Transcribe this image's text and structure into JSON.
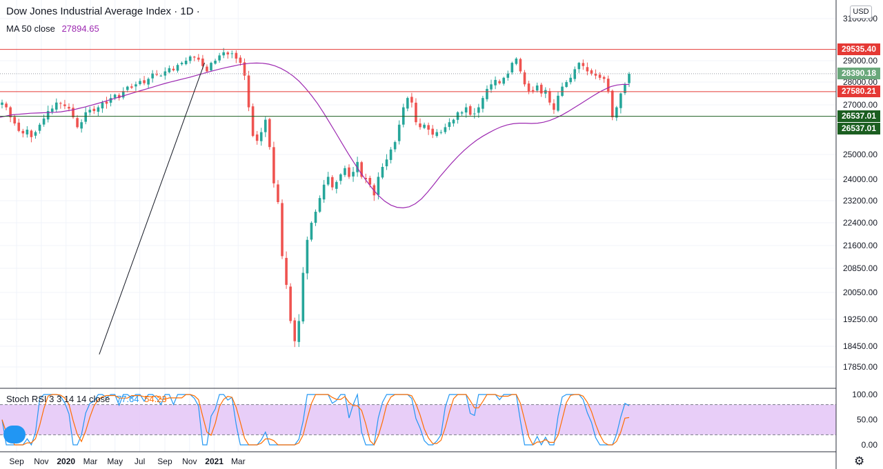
{
  "header": {
    "title": "Dow Jones Industrial Average Index · 1D ·",
    "ma_label": "MA 50 close",
    "ma_value": "27894.65",
    "currency": "USD"
  },
  "stoch": {
    "label": "Stoch RSI 3 3 14 14 close",
    "k_value": "77.64",
    "d_value": "54.23",
    "k_color": "#2196f3",
    "d_color": "#ff6d00",
    "band_upper": 80,
    "band_lower": 20,
    "ticks": [
      "100.00",
      "50.00",
      "0.00"
    ]
  },
  "chart_data": {
    "type": "candlestick",
    "price_ticks": [
      "31000.00",
      "29000.00",
      "28000.00",
      "27000.00",
      "25000.00",
      "24000.00",
      "23200.00",
      "22400.00",
      "21600.00",
      "20850.00",
      "20050.00",
      "19250.00",
      "18450.00",
      "17850.00"
    ],
    "x_labels": [
      "Sep",
      "Nov",
      "2020",
      "Mar",
      "May",
      "Jul",
      "Sep",
      "Nov",
      "2021",
      "Mar"
    ],
    "levels": [
      {
        "label": "29535.40",
        "value": 29535.4,
        "color": "#e53935"
      },
      {
        "label": "28390.18",
        "value": 28390.18,
        "color": "#6aa87b",
        "dotted": true
      },
      {
        "label": "27580.21",
        "value": 27580.21,
        "color": "#e53935"
      },
      {
        "label": "26537.01",
        "value": 26537.01,
        "color": "#1b5e20"
      }
    ],
    "second_badge": "26537.01",
    "trendline": {
      "from": [
        "2020-03-23",
        18213
      ],
      "to": [
        "2020-12-08",
        28900
      ]
    },
    "ma_color": "#9c27b0",
    "up_color": "#26a69a",
    "down_color": "#ef5350",
    "closes": [
      27100,
      26900,
      26500,
      26250,
      25950,
      25850,
      26000,
      25700,
      25900,
      26200,
      26450,
      26750,
      26850,
      27100,
      27050,
      26950,
      26850,
      26500,
      26100,
      26300,
      26700,
      26800,
      26750,
      26900,
      27100,
      27050,
      27300,
      27450,
      27300,
      27600,
      27800,
      27750,
      27900,
      28050,
      27950,
      28150,
      28400,
      28350,
      28300,
      28500,
      28650,
      28550,
      28800,
      28900,
      29000,
      29200,
      29150,
      29050,
      28750,
      28500,
      28900,
      29000,
      29250,
      29400,
      29300,
      29350,
      29100,
      28900,
      28300,
      26900,
      25750,
      25550,
      25900,
      26400,
      25300,
      23850,
      23150,
      21250,
      20300,
      19200,
      18600,
      19200,
      20700,
      21800,
      22400,
      22800,
      23300,
      23800,
      24100,
      23700,
      23900,
      24200,
      24450,
      24100,
      24300,
      24700,
      24100,
      24000,
      23800,
      23400,
      24100,
      24500,
      24800,
      25200,
      25500,
      26200,
      26900,
      27300,
      27100,
      26300,
      26100,
      26200,
      26000,
      25800,
      25900,
      25900,
      26100,
      26300,
      26400,
      26700,
      26700,
      26900,
      26600,
      26650,
      26900,
      27300,
      27700,
      27900,
      28100,
      27950,
      28200,
      28400,
      28900,
      29100,
      28500,
      27900,
      27600,
      27600,
      27850,
      27500,
      27650,
      27100,
      26800,
      27400,
      27800,
      28000,
      28200,
      28600,
      28900,
      28750,
      28500,
      28400,
      28300,
      28200,
      28150,
      27600,
      26500,
      26900,
      27500,
      27900,
      28390
    ],
    "ma50": [
      26500,
      26550,
      26600,
      26620,
      26640,
      26660,
      26670,
      26680,
      26690,
      26700,
      26720,
      26760,
      26800,
      26860,
      26920,
      26990,
      27060,
      27140,
      27220,
      27300,
      27380,
      27460,
      27540,
      27620,
      27700,
      27780,
      27860,
      27940,
      28010,
      28080,
      28150,
      28220,
      28300,
      28380,
      28460,
      28540,
      28610,
      28680,
      28740,
      28800,
      28850,
      28880,
      28890,
      28880,
      28840,
      28760,
      28640,
      28480,
      28280,
      28030,
      27740,
      27410,
      27050,
      26670,
      26270,
      25860,
      25450,
      25040,
      24650,
      24280,
      23940,
      23640,
      23380,
      23180,
      23040,
      22960,
      22940,
      22980,
      23090,
      23270,
      23520,
      23800,
      24100,
      24390,
      24670,
      24930,
      25170,
      25380,
      25570,
      25730,
      25870,
      26000,
      26110,
      26190,
      26240,
      26260,
      26260,
      26250,
      26260,
      26300,
      26370,
      26470,
      26590,
      26730,
      26880,
      27040,
      27210,
      27380,
      27540,
      27680,
      27800,
      27870,
      27900,
      27895
    ]
  }
}
